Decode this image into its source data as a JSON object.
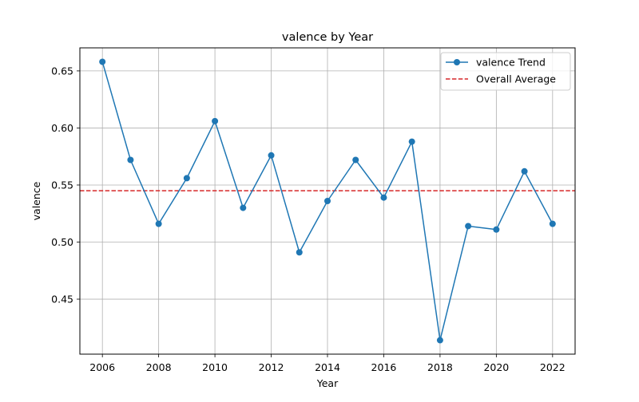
{
  "chart_data": {
    "type": "line",
    "title": "valence by Year",
    "xlabel": "Year",
    "ylabel": "valence",
    "x": [
      2006,
      2007,
      2008,
      2009,
      2010,
      2011,
      2012,
      2013,
      2014,
      2015,
      2016,
      2017,
      2018,
      2019,
      2020,
      2021,
      2022
    ],
    "series": [
      {
        "name": "valence Trend",
        "color": "#1f77b4",
        "marker": "circle",
        "values": [
          0.658,
          0.572,
          0.516,
          0.556,
          0.606,
          0.53,
          0.576,
          0.491,
          0.536,
          0.572,
          0.539,
          0.588,
          0.414,
          0.514,
          0.511,
          0.562,
          0.516
        ]
      }
    ],
    "reference_line": {
      "name": "Overall Average",
      "value": 0.545,
      "color": "#d62728",
      "style": "dashed"
    },
    "xticks": [
      "2006",
      "2008",
      "2010",
      "2012",
      "2014",
      "2016",
      "2018",
      "2020",
      "2022"
    ],
    "yticks": [
      "0.45",
      "0.50",
      "0.55",
      "0.60",
      "0.65"
    ],
    "xlim": [
      2005.2,
      2022.8
    ],
    "ylim": [
      0.4018,
      0.6702
    ],
    "grid": true,
    "legend_position": "top-right"
  }
}
